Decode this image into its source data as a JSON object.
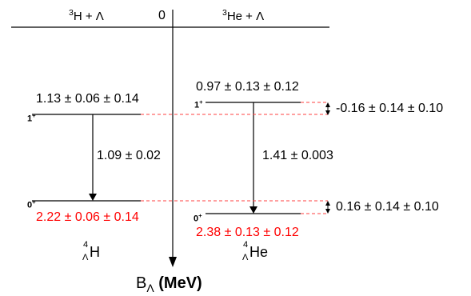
{
  "thresholds": {
    "left": {
      "mass": "3",
      "text": "H + Λ"
    },
    "right": {
      "mass": "3",
      "text": "He + Λ"
    }
  },
  "axis": {
    "zero": "0",
    "title_main": "B",
    "title_sub": "Λ",
    "title_unit": "(MeV)"
  },
  "levels": {
    "h4": {
      "excited_value": "1.13 ± 0.06 ± 0.14",
      "excited_spin": "1",
      "ground_spin": "0",
      "parity": "+",
      "transition": "1.09 ± 0.02",
      "ground_value": "2.22 ± 0.06 ± 0.14"
    },
    "he4": {
      "excited_value": "0.97 ± 0.13 ± 0.12",
      "excited_spin": "1",
      "ground_spin": "0",
      "parity": "+",
      "transition": "1.41 ± 0.003",
      "ground_value": "2.38 ± 0.13 ± 0.12"
    }
  },
  "differences": {
    "excited": "-0.16 ± 0.14 ± 0.10",
    "ground": "0.16 ± 0.14 ± 0.10"
  },
  "nuclides": {
    "h4": {
      "mass": "4",
      "sub": "Λ",
      "symbol": "H"
    },
    "he4": {
      "mass": "4",
      "sub": "Λ",
      "symbol": "He"
    }
  },
  "colors": {
    "ground_state_values": "#ff0000",
    "dashed_connectors": "#ff4040"
  }
}
